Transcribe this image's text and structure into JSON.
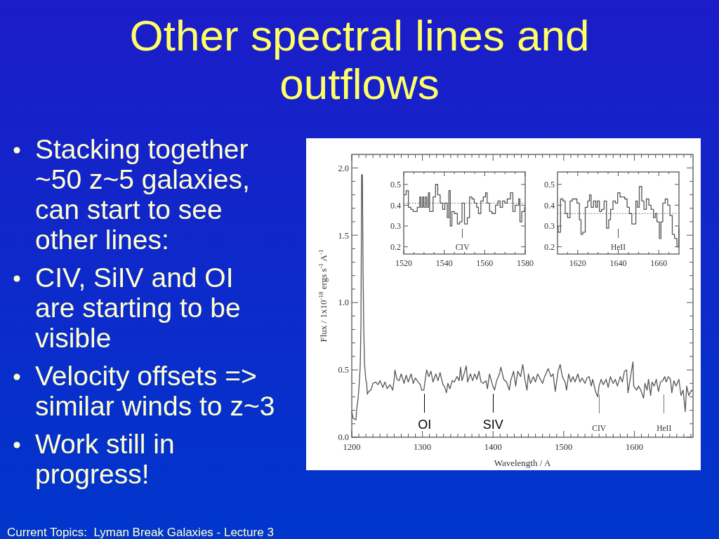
{
  "chart_data": [
    {
      "type": "line",
      "title": "Other spectral lines and outflows",
      "xlabel": "Wavelength / A",
      "ylabel": "Flux / 1x10$^{-18}$ ergs s$^{-1}$ A$^{-1}$",
      "color": "#555555",
      "xlim": [
        1200,
        1683
      ],
      "ylim": [
        0,
        2.1
      ],
      "xticks": [
        1200,
        {
          "value": 1210,
          "label": null
        },
        {
          "value": 1220,
          "label": null
        },
        {
          "value": 1230,
          "label": null
        },
        {
          "value": 1240,
          "label": null
        },
        {
          "value": 1250,
          "label": null
        },
        {
          "value": 1260,
          "label": null
        },
        {
          "value": 1270,
          "label": null
        },
        {
          "value": 1280,
          "label": null
        },
        {
          "value": 1290,
          "label": null
        },
        1300,
        {
          "value": 1310,
          "label": null
        },
        {
          "value": 1320,
          "label": null
        },
        {
          "value": 1330,
          "label": null
        },
        {
          "value": 1340,
          "label": null
        },
        {
          "value": 1350,
          "label": null
        },
        {
          "value": 1360,
          "label": null
        },
        {
          "value": 1370,
          "label": null
        },
        {
          "value": 1380,
          "label": null
        },
        {
          "value": 1390,
          "label": null
        },
        1400,
        {
          "value": 1410,
          "label": null
        },
        {
          "value": 1420,
          "label": null
        },
        {
          "value": 1430,
          "label": null
        },
        {
          "value": 1440,
          "label": null
        },
        {
          "value": 1450,
          "label": null
        },
        {
          "value": 1460,
          "label": null
        },
        {
          "value": 1470,
          "label": null
        },
        {
          "value": 1480,
          "label": null
        },
        {
          "value": 1490,
          "label": null
        },
        1500,
        {
          "value": 1510,
          "label": null
        },
        {
          "value": 1520,
          "label": null
        },
        {
          "value": 1530,
          "label": null
        },
        {
          "value": 1540,
          "label": null
        },
        {
          "value": 1550,
          "label": null
        },
        {
          "value": 1560,
          "label": null
        },
        {
          "value": 1570,
          "label": null
        },
        {
          "value": 1580,
          "label": null
        },
        {
          "value": 1590,
          "label": null
        },
        1600,
        {
          "value": 1610,
          "label": null
        },
        {
          "value": 1620,
          "label": null
        },
        {
          "value": 1630,
          "label": null
        },
        {
          "value": 1640,
          "label": null
        },
        {
          "value": 1650,
          "label": null
        },
        {
          "value": 1660,
          "label": null
        },
        {
          "value": 1670,
          "label": null
        },
        {
          "value": 1680,
          "label": null
        }
      ],
      "yticks": [
        {
          "value": 0,
          "label": "0.0"
        },
        {
          "value": 0.1,
          "label": null
        },
        {
          "value": 0.2,
          "label": null
        },
        {
          "value": 0.3,
          "label": null
        },
        {
          "value": 0.4,
          "label": null
        },
        0.5,
        {
          "value": 0.6,
          "label": null
        },
        {
          "value": 0.7,
          "label": null
        },
        {
          "value": 0.8,
          "label": null
        },
        {
          "value": 0.9,
          "label": null
        },
        {
          "value": 1,
          "label": "1.0"
        },
        {
          "value": 1.1,
          "label": null
        },
        {
          "value": 1.2,
          "label": null
        },
        {
          "value": 1.3,
          "label": null
        },
        {
          "value": 1.4,
          "label": null
        },
        1.5,
        {
          "value": 1.6,
          "label": null
        },
        {
          "value": 1.7,
          "label": null
        },
        {
          "value": 1.8,
          "label": null
        },
        {
          "value": 1.9,
          "label": null
        },
        {
          "value": 2,
          "label": "2.0"
        }
      ],
      "x": [
        1200,
        1202,
        1206,
        1207,
        1209,
        1211,
        1212,
        1213,
        1214,
        1215,
        1216,
        1217,
        1218,
        1220,
        1221,
        1222,
        1224,
        1227,
        1230,
        1234,
        1237,
        1240,
        1244,
        1247,
        1250,
        1254,
        1258,
        1260,
        1261,
        1264,
        1267,
        1270,
        1274,
        1277,
        1280,
        1284,
        1287,
        1290,
        1294,
        1297,
        1299,
        1302,
        1304,
        1306,
        1309,
        1312,
        1315,
        1319,
        1322,
        1325,
        1329,
        1331,
        1334,
        1336,
        1339,
        1342,
        1345,
        1349,
        1352,
        1354,
        1356,
        1359,
        1362,
        1364,
        1368,
        1371,
        1374,
        1377,
        1380,
        1383,
        1386,
        1390,
        1392,
        1395,
        1399,
        1402,
        1405,
        1409,
        1411,
        1415,
        1419,
        1423,
        1425,
        1429,
        1432,
        1435,
        1439,
        1442,
        1445,
        1448,
        1450,
        1453,
        1457,
        1460,
        1463,
        1467,
        1470,
        1473,
        1478,
        1482,
        1485,
        1488,
        1492,
        1495,
        1498,
        1502,
        1504,
        1507,
        1510,
        1513,
        1516,
        1520,
        1523,
        1526,
        1530,
        1533,
        1536,
        1539,
        1541,
        1545,
        1548,
        1550,
        1553,
        1556,
        1560,
        1563,
        1566,
        1570,
        1573,
        1576,
        1580,
        1583,
        1586,
        1589,
        1591,
        1594,
        1598,
        1599,
        1603,
        1606,
        1609,
        1613,
        1615,
        1618,
        1620,
        1623,
        1625,
        1628,
        1631,
        1634,
        1637,
        1640,
        1643,
        1645,
        1648,
        1651,
        1653,
        1656,
        1659,
        1663,
        1666,
        1669,
        1672,
        1674,
        1677,
        1681,
        1682
      ],
      "values": [
        0.19,
        0.14,
        0.13,
        0.21,
        0.29,
        0.43,
        0.54,
        0.83,
        1.95,
        1.95,
        1.22,
        0.8,
        0.55,
        0.42,
        0.41,
        0.32,
        0.34,
        0.35,
        0.4,
        0.41,
        0.39,
        0.42,
        0.37,
        0.41,
        0.36,
        0.39,
        0.35,
        0.43,
        0.5,
        0.43,
        0.42,
        0.47,
        0.4,
        0.46,
        0.41,
        0.47,
        0.4,
        0.44,
        0.41,
        0.39,
        0.35,
        0.35,
        0.43,
        0.5,
        0.45,
        0.49,
        0.41,
        0.47,
        0.42,
        0.48,
        0.39,
        0.38,
        0.33,
        0.4,
        0.36,
        0.42,
        0.41,
        0.45,
        0.42,
        0.52,
        0.42,
        0.47,
        0.53,
        0.41,
        0.47,
        0.42,
        0.47,
        0.43,
        0.49,
        0.41,
        0.4,
        0.42,
        0.36,
        0.47,
        0.39,
        0.35,
        0.42,
        0.47,
        0.52,
        0.43,
        0.41,
        0.35,
        0.42,
        0.49,
        0.38,
        0.49,
        0.45,
        0.54,
        0.43,
        0.35,
        0.47,
        0.4,
        0.45,
        0.41,
        0.47,
        0.43,
        0.4,
        0.45,
        0.51,
        0.45,
        0.47,
        0.34,
        0.49,
        0.54,
        0.45,
        0.41,
        0.35,
        0.47,
        0.41,
        0.45,
        0.41,
        0.47,
        0.41,
        0.44,
        0.4,
        0.44,
        0.45,
        0.38,
        0.43,
        0.34,
        0.3,
        0.38,
        0.43,
        0.39,
        0.43,
        0.37,
        0.45,
        0.4,
        0.43,
        0.38,
        0.45,
        0.41,
        0.49,
        0.5,
        0.33,
        0.43,
        0.56,
        0.38,
        0.35,
        0.38,
        0.35,
        0.29,
        0.4,
        0.35,
        0.43,
        0.31,
        0.41,
        0.38,
        0.43,
        0.34,
        0.41,
        0.42,
        0.45,
        0.41,
        0.45,
        0.43,
        0.33,
        0.42,
        0.38,
        0.43,
        0.31,
        0.35,
        0.19,
        0.38,
        0.31,
        0.35,
        0.34
      ],
      "ref_lines": [
        {
          "axis": "x",
          "value": 1303,
          "label": "OI",
          "color": "#000000"
        },
        {
          "axis": "x",
          "value": 1400,
          "label": "SIV",
          "color": "#000000"
        },
        {
          "axis": "x",
          "value": 1550,
          "label": "CIV",
          "color": "#777777"
        },
        {
          "axis": "x",
          "value": 1642,
          "label": "HeII",
          "color": "#777777"
        }
      ],
      "annotations": [
        "Stacking together ~50 z~5 galaxies, can start to see other lines:",
        "CIV, SiIV and OI are starting to be visible",
        "Velocity offsets => similar winds to z~3",
        "Work still in progress!",
        "Current Topics:  Lyman Break Galaxies - Lecture 3"
      ]
    },
    {
      "type": "step",
      "color": "#555555",
      "xlim": [
        1520,
        1580
      ],
      "ylim": [
        0.165,
        0.56
      ],
      "xticks": [
        1520,
        {
          "value": 1525,
          "label": null
        },
        {
          "value": 1530,
          "label": null
        },
        {
          "value": 1535,
          "label": null
        },
        1540,
        {
          "value": 1545,
          "label": null
        },
        {
          "value": 1550,
          "label": null
        },
        {
          "value": 1555,
          "label": null
        },
        1560,
        {
          "value": 1565,
          "label": null
        },
        {
          "value": 1570,
          "label": null
        },
        {
          "value": 1575,
          "label": null
        },
        1580
      ],
      "yticks": [
        0.2,
        0.3,
        0.4,
        0.5
      ],
      "x": [
        1520,
        1521.2,
        1522.3,
        1523.5,
        1524.6,
        1526.7,
        1527.9,
        1528.5,
        1529.3,
        1529.9,
        1530.7,
        1531.4,
        1532.2,
        1532.8,
        1534.5,
        1535.7,
        1536.8,
        1538,
        1539.2,
        1540.3,
        1541.5,
        1542.3,
        1543,
        1543.8,
        1545,
        1546.5,
        1547.6,
        1548.8,
        1550,
        1551.4,
        1552.5,
        1553.7,
        1554.8,
        1556,
        1556.9,
        1558.1,
        1559.3,
        1560.4,
        1561.2,
        1562.4,
        1563.6,
        1565.3,
        1566.5,
        1567.6,
        1568.8,
        1569.9,
        1571.1,
        1572.7,
        1573.9,
        1575,
        1576.8,
        1577.4,
        1578.3,
        1579.7,
        1580
      ],
      "values": [
        0.45,
        0.47,
        0.39,
        0.38,
        0.37,
        0.39,
        0.44,
        0.39,
        0.44,
        0.39,
        0.44,
        0.39,
        0.46,
        0.37,
        0.44,
        0.5,
        0.45,
        0.41,
        0.38,
        0.41,
        0.34,
        0.47,
        0.3,
        0.37,
        0.36,
        0.31,
        0.32,
        0.41,
        0.31,
        0.34,
        0.44,
        0.43,
        0.41,
        0.39,
        0.36,
        0.42,
        0.44,
        0.46,
        0.41,
        0.37,
        0.36,
        0.4,
        0.42,
        0.39,
        0.42,
        0.41,
        0.43,
        0.46,
        0.37,
        0.4,
        0.43,
        0.32,
        0.37,
        0.39,
        0.39
      ],
      "ref_lines": [
        {
          "axis": "y",
          "value": 0.41,
          "line_style": "dotted"
        },
        {
          "axis": "x",
          "value": 1549,
          "label": "CIV",
          "color": "#555555"
        }
      ]
    },
    {
      "type": "step",
      "color": "#555555",
      "xlim": [
        1610,
        1670
      ],
      "ylim": [
        0.165,
        0.56
      ],
      "xticks": [
        {
          "value": 1615,
          "label": null
        },
        1620,
        {
          "value": 1625,
          "label": null
        },
        {
          "value": 1630,
          "label": null
        },
        {
          "value": 1635,
          "label": null
        },
        1640,
        {
          "value": 1645,
          "label": null
        },
        {
          "value": 1650,
          "label": null
        },
        {
          "value": 1655,
          "label": null
        },
        1660,
        {
          "value": 1665,
          "label": null
        }
      ],
      "yticks": [
        0.2,
        0.3,
        0.4,
        0.5
      ],
      "x": [
        1610,
        1610.3,
        1611.5,
        1612.7,
        1613.8,
        1615,
        1616.2,
        1617.3,
        1619.6,
        1620.8,
        1621.6,
        1622.5,
        1623.7,
        1624.9,
        1625.8,
        1626.6,
        1627.8,
        1628.9,
        1629.7,
        1630.7,
        1631.8,
        1633,
        1634.2,
        1635.3,
        1636.2,
        1637.4,
        1638.6,
        1639.7,
        1640.9,
        1642.1,
        1643.2,
        1644.4,
        1645.5,
        1646.7,
        1648.7,
        1649.5,
        1650.4,
        1651.6,
        1652.7,
        1653.9,
        1655.1,
        1656.2,
        1657.4,
        1658.3,
        1659.1,
        1660.3,
        1661.1,
        1662,
        1663.2,
        1664.4,
        1665.5,
        1666.7,
        1667.8,
        1669,
        1669.9,
        1670
      ],
      "values": [
        0.3,
        0.27,
        0.43,
        0.42,
        0.36,
        0.34,
        0.42,
        0.43,
        0.41,
        0.33,
        0.26,
        0.27,
        0.39,
        0.42,
        0.45,
        0.39,
        0.42,
        0.39,
        0.42,
        0.37,
        0.38,
        0.42,
        0.29,
        0.33,
        0.38,
        0.42,
        0.41,
        0.46,
        0.44,
        0.44,
        0.43,
        0.39,
        0.36,
        0.31,
        0.42,
        0.39,
        0.49,
        0.42,
        0.38,
        0.43,
        0.4,
        0.38,
        0.34,
        0.36,
        0.32,
        0.24,
        0.32,
        0.41,
        0.43,
        0.4,
        0.35,
        0.26,
        0.24,
        0.2,
        0.29,
        0.29
      ],
      "ref_lines": [
        {
          "axis": "y",
          "value": 0.36,
          "line_style": "dotted"
        },
        {
          "axis": "x",
          "value": 1640,
          "label": "HeII",
          "color": "#555555"
        }
      ]
    }
  ]
}
